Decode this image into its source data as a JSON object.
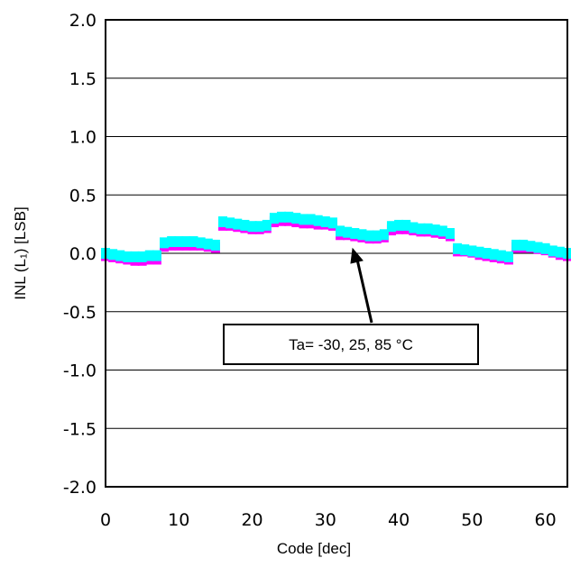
{
  "chart_data": {
    "type": "scatter",
    "xlabel": "Code [dec]",
    "ylabel": "INL (L₁) [LSB]",
    "xlim": [
      0,
      63
    ],
    "ylim": [
      -2.0,
      2.0
    ],
    "x_ticks": [
      "0",
      "10",
      "20",
      "30",
      "40",
      "50",
      "60"
    ],
    "y_ticks": [
      "2.0",
      "1.5",
      "1.0",
      "0.5",
      "0.0",
      "-0.5",
      "-1.0",
      "-1.5",
      "-2.0"
    ],
    "grid": "horizontal",
    "annotation": "Ta= -30, 25, 85 °C",
    "annotation_arrow_target": {
      "x": 35,
      "y": 0.0
    },
    "series": [
      {
        "color": "#ff00ff",
        "x": [
          0,
          1,
          2,
          3,
          4,
          5,
          6,
          7,
          8,
          9,
          10,
          11,
          12,
          13,
          14,
          15,
          16,
          17,
          18,
          19,
          20,
          21,
          22,
          23,
          24,
          25,
          26,
          27,
          28,
          29,
          30,
          31,
          32,
          33,
          34,
          35,
          36,
          37,
          38,
          39,
          40,
          41,
          42,
          43,
          44,
          45,
          46,
          47,
          48,
          49,
          50,
          51,
          52,
          53,
          54,
          55,
          56,
          57,
          58,
          59,
          60,
          61,
          62,
          63
        ],
        "y": [
          -0.02,
          -0.03,
          -0.04,
          -0.05,
          -0.06,
          -0.06,
          -0.05,
          -0.05,
          0.06,
          0.07,
          0.07,
          0.07,
          0.07,
          0.07,
          0.06,
          0.05,
          0.24,
          0.24,
          0.23,
          0.22,
          0.21,
          0.21,
          0.22,
          0.27,
          0.28,
          0.28,
          0.27,
          0.26,
          0.26,
          0.25,
          0.25,
          0.24,
          0.16,
          0.16,
          0.15,
          0.14,
          0.13,
          0.13,
          0.14,
          0.2,
          0.21,
          0.21,
          0.2,
          0.19,
          0.19,
          0.18,
          0.17,
          0.15,
          0.02,
          0.02,
          0.01,
          -0.01,
          -0.02,
          -0.03,
          -0.04,
          -0.05,
          0.05,
          0.05,
          0.05,
          0.04,
          0.03,
          0.01,
          -0.01,
          -0.02
        ]
      },
      {
        "color": "#00ffff",
        "x": [
          0,
          1,
          2,
          3,
          4,
          5,
          6,
          7,
          8,
          9,
          10,
          11,
          12,
          13,
          14,
          15,
          16,
          17,
          18,
          19,
          20,
          21,
          22,
          23,
          24,
          25,
          26,
          27,
          28,
          29,
          30,
          31,
          32,
          33,
          34,
          35,
          36,
          37,
          38,
          39,
          40,
          41,
          42,
          43,
          44,
          45,
          46,
          47,
          48,
          49,
          50,
          51,
          52,
          53,
          54,
          55,
          56,
          57,
          58,
          59,
          60,
          61,
          62,
          63
        ],
        "y": [
          0.0,
          -0.01,
          -0.02,
          -0.03,
          -0.03,
          -0.03,
          -0.02,
          -0.02,
          0.09,
          0.1,
          0.1,
          0.1,
          0.1,
          0.09,
          0.08,
          0.07,
          0.27,
          0.26,
          0.25,
          0.24,
          0.23,
          0.23,
          0.24,
          0.3,
          0.31,
          0.31,
          0.3,
          0.29,
          0.29,
          0.28,
          0.27,
          0.26,
          0.19,
          0.18,
          0.17,
          0.16,
          0.15,
          0.15,
          0.16,
          0.23,
          0.24,
          0.24,
          0.22,
          0.21,
          0.21,
          0.2,
          0.19,
          0.17,
          0.04,
          0.03,
          0.02,
          0.01,
          0.0,
          -0.01,
          -0.02,
          -0.03,
          0.07,
          0.07,
          0.06,
          0.05,
          0.04,
          0.02,
          0.01,
          0.0
        ]
      }
    ]
  }
}
